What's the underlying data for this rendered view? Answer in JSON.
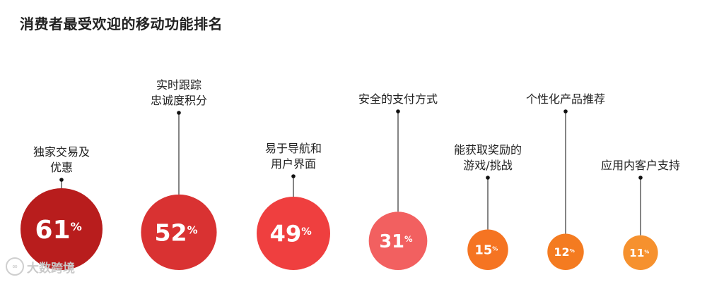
{
  "chart_data": {
    "type": "bubble",
    "title": "消费者最受欢迎的移动功能排名",
    "unit": "%",
    "categories": [
      [
        "独家交易及",
        "优惠"
      ],
      [
        "实时跟踪",
        "忠诚度积分"
      ],
      [
        "易于导航和",
        "用户界面"
      ],
      [
        "安全的支付方式"
      ],
      [
        "能获取奖励的",
        "游戏/挑战"
      ],
      [
        "个性化产品推荐"
      ],
      [
        "应用内客户支持"
      ]
    ],
    "values": [
      61,
      52,
      49,
      31,
      15,
      12,
      11
    ],
    "colors": [
      "#b81d1d",
      "#d93232",
      "#ef3f3f",
      "#f26060",
      "#f57422",
      "#f47b20",
      "#f6912e"
    ]
  },
  "watermark": {
    "text": "大数跨境"
  }
}
